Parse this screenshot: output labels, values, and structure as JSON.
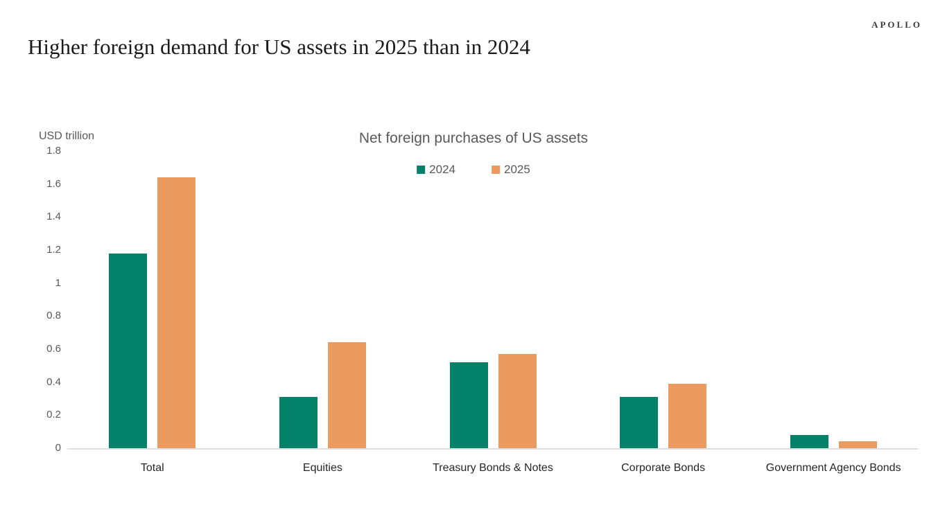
{
  "brand": {
    "logo": "APOLLO"
  },
  "page_title": "Higher foreign demand for US assets in 2025 than in 2024",
  "chart_data": {
    "type": "bar",
    "title": "Net foreign purchases of US assets",
    "xlabel": "",
    "ylabel": "USD trillion",
    "categories": [
      "Total",
      "Equities",
      "Treasury Bonds & Notes",
      "Corporate Bonds",
      "Government Agency Bonds"
    ],
    "series": [
      {
        "name": "2024",
        "color": "#038269",
        "values": [
          1.18,
          0.31,
          0.52,
          0.31,
          0.08
        ]
      },
      {
        "name": "2025",
        "color": "#EC9B60",
        "values": [
          1.64,
          0.64,
          0.57,
          0.39,
          0.04
        ]
      }
    ],
    "ylim": [
      0,
      1.8
    ],
    "ytick_step": 0.2,
    "yticks": [
      "1.8",
      "1.6",
      "1.4",
      "1.2",
      "1",
      "0.8",
      "0.6",
      "0.4",
      "0.2",
      "0"
    ],
    "grid": false,
    "legend_position": "top-center"
  },
  "colors": {
    "series_2024": "#038269",
    "series_2025": "#EC9B60",
    "axis_line": "#e0e0e0",
    "muted_text": "#595959",
    "category_text": "#262626",
    "title_text": "#1a1a1a"
  }
}
